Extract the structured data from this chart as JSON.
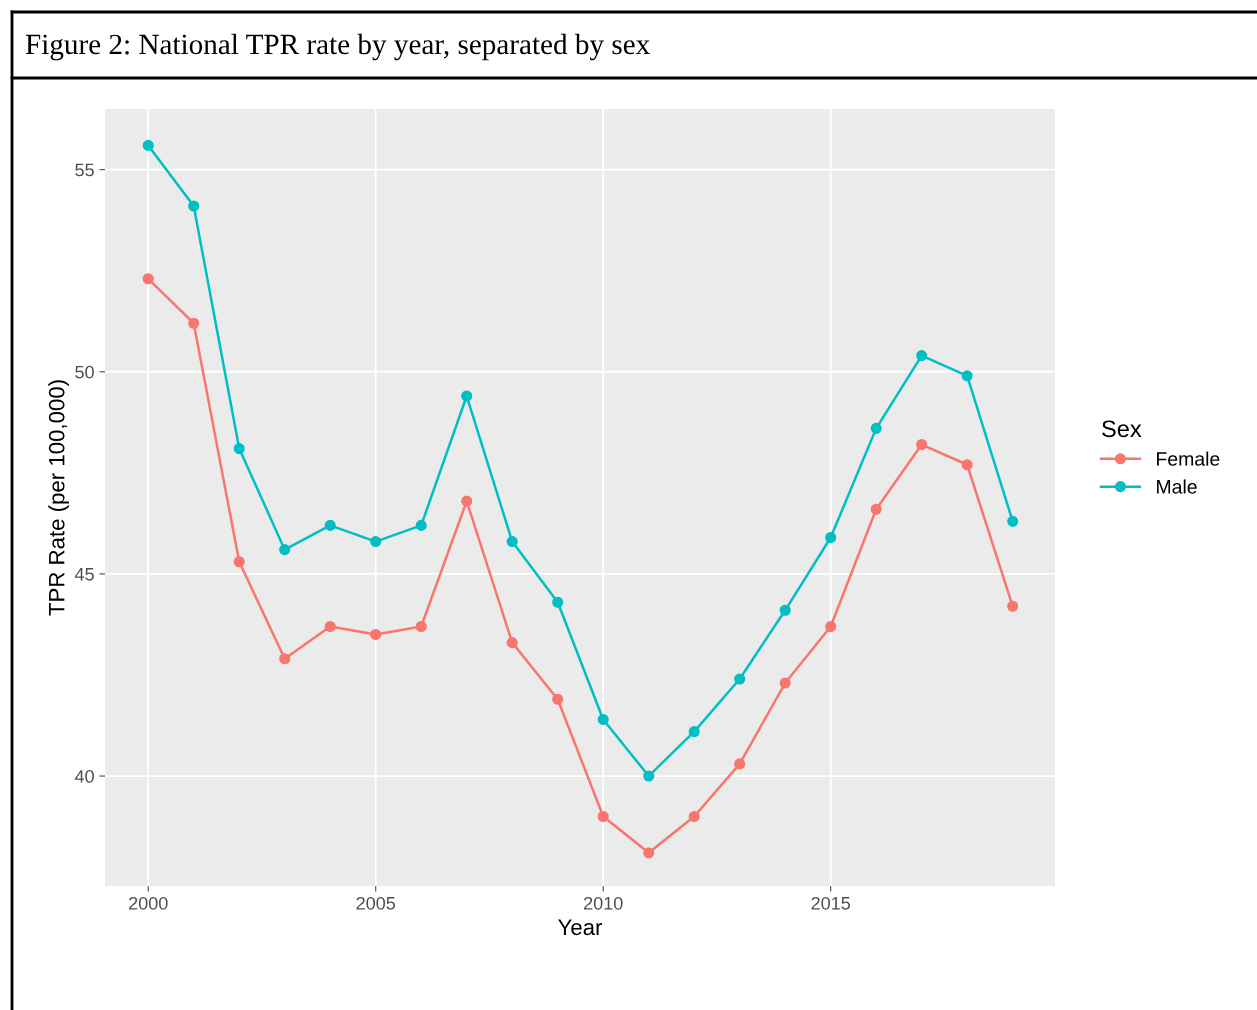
{
  "chart_data": {
    "type": "line",
    "title": "Figure 2: National TPR rate by year, separated by sex",
    "xlabel": "Year",
    "ylabel": "TPR Rate (per 100,000)",
    "legend_title": "Sex",
    "legend": "right",
    "marker": "circle",
    "line_style": "solid",
    "grid": true,
    "x": [
      2000,
      2001,
      2002,
      2003,
      2004,
      2005,
      2006,
      2007,
      2008,
      2009,
      2010,
      2011,
      2012,
      2013,
      2014,
      2015,
      2016,
      2017,
      2018,
      2019
    ],
    "series": [
      {
        "name": "Female",
        "color": "#f8766d",
        "values": [
          52.3,
          51.2,
          45.3,
          42.9,
          43.7,
          43.5,
          43.7,
          46.8,
          43.3,
          41.9,
          39.0,
          38.1,
          39.0,
          40.3,
          42.3,
          43.7,
          46.6,
          48.2,
          47.7,
          44.2
        ]
      },
      {
        "name": "Male",
        "color": "#00bfc4",
        "values": [
          55.6,
          54.1,
          48.1,
          45.6,
          46.2,
          45.8,
          46.2,
          49.4,
          45.8,
          44.3,
          41.4,
          40.0,
          41.1,
          42.4,
          44.1,
          45.9,
          48.6,
          50.4,
          49.9,
          46.3
        ]
      }
    ],
    "xlim": [
      1999.05,
      2019.93
    ],
    "xticks": [
      2000,
      2005,
      2010,
      2015
    ],
    "ylim": [
      37.28,
      56.5
    ],
    "yticks": [
      40,
      45,
      50,
      55
    ]
  }
}
